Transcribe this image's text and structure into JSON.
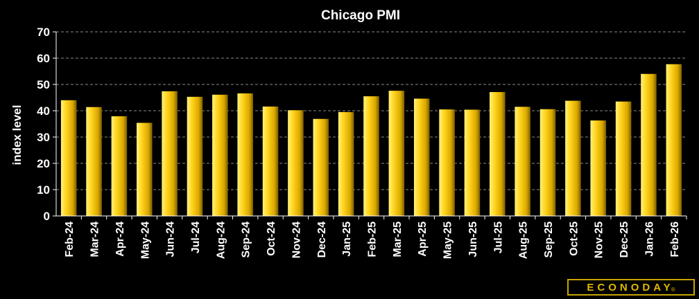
{
  "chart_data": {
    "type": "bar",
    "title": "Chicago PMI",
    "ylabel": "index level",
    "xlabel": "",
    "ylim": [
      0,
      70
    ],
    "yticks": [
      0,
      10,
      20,
      30,
      40,
      50,
      60,
      70
    ],
    "grid": "horizontal dashed",
    "legend": "none",
    "categories": [
      "Feb-24",
      "Mar-24",
      "Apr-24",
      "May-24",
      "Jun-24",
      "Jul-24",
      "Aug-24",
      "Sep-24",
      "Oct-24",
      "Nov-24",
      "Dec-24",
      "Jan-25",
      "Feb-25",
      "Mar-25",
      "Apr-25",
      "May-25",
      "Jun-25",
      "Jul-25",
      "Aug-25",
      "Sep-25",
      "Oct-25",
      "Nov-25",
      "Dec-25",
      "Jan-26",
      "Feb-26"
    ],
    "values": [
      44.0,
      41.4,
      37.9,
      35.4,
      47.4,
      45.3,
      46.1,
      46.6,
      41.6,
      40.2,
      36.9,
      39.5,
      45.5,
      47.6,
      44.6,
      40.5,
      40.4,
      47.1,
      41.5,
      40.6,
      43.8,
      36.3,
      43.5,
      54.0,
      57.7
    ]
  },
  "colors": {
    "background": "#000000",
    "bar_light": "#fff27a",
    "bar_mid": "#f2c500",
    "bar_dark": "#7a5e00",
    "text": "#ffffff",
    "grid": "#8c8c8c",
    "logo": "#e2b900"
  },
  "branding": {
    "logo_text": "ECONODAY",
    "logo_mark": "®"
  }
}
